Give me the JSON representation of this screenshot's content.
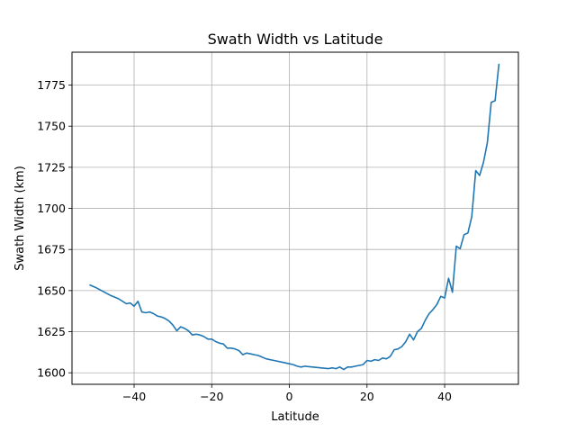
{
  "chart_data": {
    "type": "line",
    "title": "Swath Width vs Latitude",
    "xlabel": "Latitude",
    "ylabel": "Swath Width (km)",
    "xlim": [
      -56,
      59
    ],
    "ylim": [
      1593,
      1795
    ],
    "xticks": [
      -40,
      -20,
      0,
      20,
      40
    ],
    "yticks": [
      1600,
      1625,
      1650,
      1675,
      1700,
      1725,
      1750,
      1775
    ],
    "xtick_labels": [
      "−40",
      "−20",
      "0",
      "20",
      "40"
    ],
    "ytick_labels": [
      "1600",
      "1625",
      "1650",
      "1675",
      "1700",
      "1725",
      "1750",
      "1775"
    ],
    "grid": true,
    "line_color": "#1f77b4",
    "series": [
      {
        "x": [
          -51.5,
          -50,
          -48,
          -46,
          -44,
          -42,
          -41,
          -40,
          -39,
          -38,
          -37,
          -36,
          -35,
          -34,
          -33,
          -32,
          -31,
          -30,
          -29,
          -28,
          -27,
          -26,
          -25,
          -24,
          -23,
          -22,
          -21,
          -20,
          -19,
          -18,
          -17,
          -16,
          -15,
          -14,
          -13,
          -12,
          -11,
          -10,
          -9,
          -8,
          -6,
          -4,
          -2,
          0,
          1,
          2,
          3,
          4,
          6,
          8,
          10,
          11,
          12,
          13,
          14,
          15,
          16,
          17,
          18,
          19,
          20,
          21,
          22,
          23,
          24,
          25,
          26,
          27,
          28,
          29,
          30,
          31,
          32,
          33,
          34,
          35,
          36,
          37,
          38,
          39,
          40,
          41,
          42,
          43,
          44,
          45,
          46,
          47,
          48,
          49,
          50,
          51,
          52,
          53,
          54
        ],
        "y": [
          1653.5,
          1652,
          1649.5,
          1647,
          1645,
          1642,
          1642.5,
          1640.5,
          1643.5,
          1637,
          1636.5,
          1637,
          1636,
          1634.5,
          1634,
          1633,
          1631.5,
          1629,
          1625.5,
          1628,
          1627,
          1625.5,
          1623,
          1623.5,
          1623,
          1622,
          1620.5,
          1620.5,
          1619,
          1618,
          1617.5,
          1615,
          1615,
          1614.5,
          1613.5,
          1611,
          1612,
          1611.5,
          1611,
          1610.5,
          1608.5,
          1607.5,
          1606.5,
          1605.5,
          1605,
          1604,
          1603.5,
          1604,
          1603.5,
          1603,
          1602.5,
          1603,
          1602.5,
          1603.5,
          1602,
          1603.5,
          1603.5,
          1604,
          1604.5,
          1605,
          1607.5,
          1607,
          1608,
          1607.5,
          1609,
          1608.5,
          1610,
          1614,
          1614.5,
          1616,
          1619,
          1623.5,
          1620,
          1625,
          1627,
          1632,
          1636,
          1638.5,
          1641.5,
          1646.5,
          1645.5,
          1657.5,
          1649,
          1677,
          1675.5,
          1684,
          1685,
          1695,
          1723,
          1720,
          1728,
          1740,
          1764.5,
          1765.5,
          1788
        ]
      }
    ]
  }
}
